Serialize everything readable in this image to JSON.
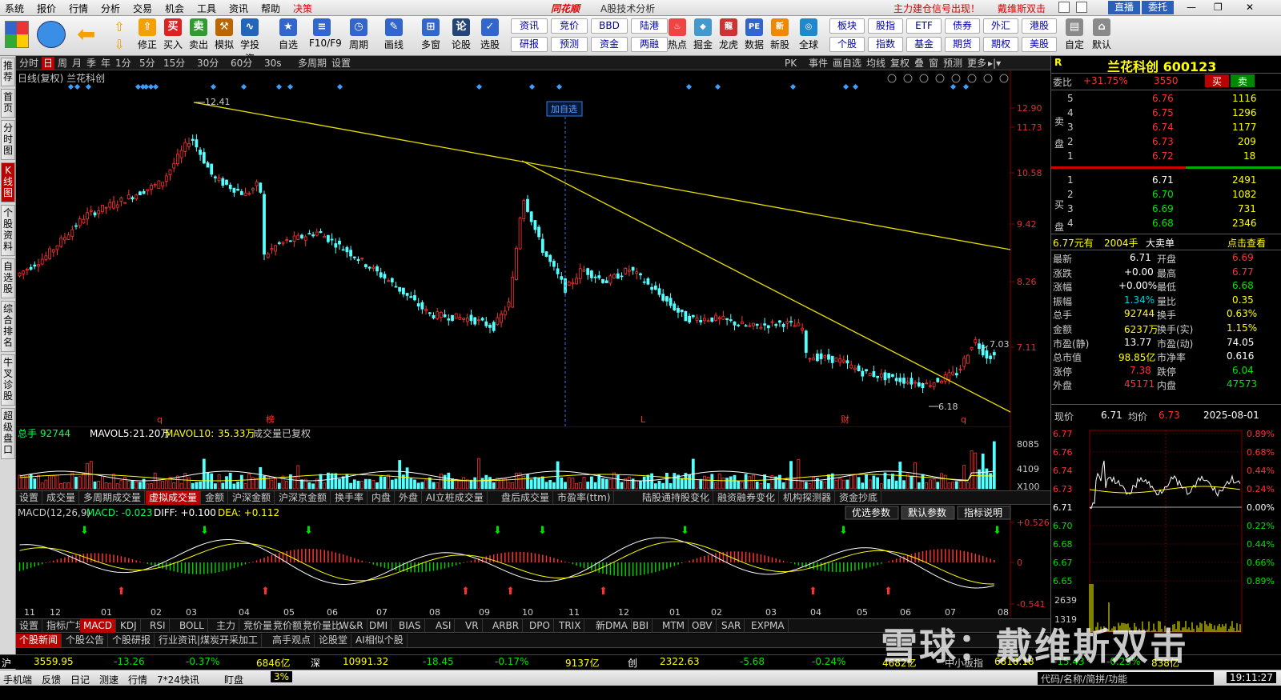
{
  "menu": {
    "items": [
      "系统",
      "报价",
      "行情",
      "分析",
      "交易",
      "机会",
      "工具",
      "资讯",
      "帮助",
      "决策"
    ],
    "brand": "同花顺",
    "subtitle": "A股技术分析",
    "signal": "主力建仓信号出现！",
    "user": "戴维斯双击",
    "live": "直播",
    "entrust": "委托"
  },
  "toolbar": {
    "main": [
      {
        "label": "修正",
        "icon": "⇧"
      },
      {
        "label": "买入",
        "icon": "买"
      },
      {
        "label": "卖出",
        "icon": "卖"
      },
      {
        "label": "模拟",
        "icon": "⚒"
      },
      {
        "label": "学投资",
        "icon": "∿"
      },
      {
        "label": "自选",
        "icon": "★"
      },
      {
        "label": "F10/F9",
        "icon": "≡"
      },
      {
        "label": "周期",
        "icon": "◷"
      },
      {
        "label": "画线",
        "icon": "✎"
      },
      {
        "label": "多窗",
        "icon": "⊞"
      },
      {
        "label": "论股",
        "icon": "论"
      },
      {
        "label": "选股",
        "icon": "✓"
      }
    ],
    "grid": [
      [
        "资讯",
        "竞价",
        "BBD",
        "陆港"
      ],
      [
        "研报",
        "预测",
        "资金",
        "两融"
      ]
    ],
    "mid": [
      {
        "label": "热点",
        "icon": "♨"
      },
      {
        "label": "掘金",
        "icon": "◆"
      },
      {
        "label": "龙虎",
        "icon": "龍"
      },
      {
        "label": "数据",
        "icon": "PE"
      },
      {
        "label": "新股",
        "icon": "新"
      },
      {
        "label": "全球",
        "icon": "◎"
      }
    ],
    "grid2": [
      [
        "板块",
        "股指",
        "ETF",
        "债券",
        "外汇",
        "港股"
      ],
      [
        "个股",
        "指数",
        "基金",
        "期货",
        "期权",
        "美股"
      ]
    ],
    "right": [
      {
        "label": "自定",
        "icon": "▤"
      },
      {
        "label": "默认",
        "icon": "⌂"
      }
    ]
  },
  "vtabs": [
    "推荐",
    "首页",
    "分时图",
    "K线图",
    "个股资料",
    "自选股",
    "综合排名",
    "牛叉诊股",
    "超级盘口"
  ],
  "period": {
    "items": [
      "分时",
      "日",
      "周",
      "月",
      "季",
      "年",
      "1分",
      "5分",
      "15分",
      "30分",
      "60分",
      "30s",
      "多周期",
      "设置"
    ],
    "active": "日",
    "right": [
      "PK",
      "事件",
      "画自选",
      "均线",
      "复权",
      "叠",
      "窗",
      "预测",
      "更多"
    ]
  },
  "chart": {
    "title": "日线(复权) 兰花科创",
    "price_axis": [
      "12.90",
      "11.73",
      "10.58",
      "9.42",
      "8.26",
      "7.11"
    ],
    "annotations": {
      "high": "12.41",
      "low": "6.18",
      "last": "7.03",
      "add_label": "加自选"
    },
    "event_marks": [
      "q",
      "榜",
      "L",
      "财",
      "q"
    ],
    "x_labels": [
      "11",
      "12",
      "01",
      "02",
      "03",
      "04",
      "05",
      "06",
      "07",
      "08",
      "09",
      "10",
      "11",
      "12",
      "01",
      "02",
      "03",
      "04",
      "05",
      "06",
      "07",
      "08"
    ],
    "volume_legend": {
      "name": "总手",
      "value": "92744",
      "ma5_label": "MAVOL5:",
      "ma5": "21.20万",
      "ma10_label": "MAVOL10:",
      "ma10": "35.33万",
      "note": "成交量已复权"
    },
    "volume_axis": [
      "8085",
      "4109",
      "X100"
    ],
    "macd_legend": {
      "name": "MACD(12,26,9)",
      "macd": "MACD: -0.023",
      "diff": "DIFF: +0.100",
      "dea": "DEA: +0.112"
    },
    "macd_axis": [
      "+0.526",
      "0",
      "-0.541"
    ],
    "macd_buttons": [
      "优选参数",
      "默认参数",
      "指标说明"
    ]
  },
  "vol_tabs": [
    "设置",
    "成交量",
    "多周期成交量",
    "虚拟成交量",
    "金额",
    "沪深金额",
    "沪深京金额",
    "换手率",
    "内盘",
    "外盘",
    "AI立桩成交量",
    "盘后成交量",
    "市盈率(ttm)",
    "陆股通持股变化",
    "融资融券变化",
    "机构探测器",
    "资金抄底"
  ],
  "ind_tabs": [
    "设置",
    "指标广场",
    "MACD",
    "KDJ",
    "RSI",
    "BOLL",
    "主力",
    "竞价量",
    "竞价额",
    "竞价量比",
    "W&R",
    "DMI",
    "BIAS",
    "ASI",
    "VR",
    "ARBR",
    "DPO",
    "TRIX",
    "新DMA",
    "BBI",
    "MTM",
    "OBV",
    "SAR",
    "EXPMA"
  ],
  "news_tabs": [
    "个股新闻",
    "个股公告",
    "个股研报",
    "行业资讯|煤炭开采加工",
    "高手观点",
    "论股堂",
    "AI相似个股"
  ],
  "quote": {
    "code_badge": "R",
    "name": "兰花科创 600123",
    "weibi_label": "委比",
    "weibi": "+31.75%",
    "weicha": "3550",
    "buy": "买",
    "sell": "卖",
    "asks": [
      {
        "lvl": "5",
        "price": "6.76",
        "vol": "1116"
      },
      {
        "lvl": "4",
        "price": "6.75",
        "vol": "1296"
      },
      {
        "lvl": "3",
        "price": "6.74",
        "vol": "1177"
      },
      {
        "lvl": "2",
        "price": "6.73",
        "vol": "209"
      },
      {
        "lvl": "1",
        "price": "6.72",
        "vol": "18"
      }
    ],
    "bids": [
      {
        "lvl": "1",
        "price": "6.71",
        "vol": "2491"
      },
      {
        "lvl": "2",
        "price": "6.70",
        "vol": "1082"
      },
      {
        "lvl": "3",
        "price": "6.69",
        "vol": "731"
      },
      {
        "lvl": "4",
        "price": "6.68",
        "vol": "2346"
      }
    ],
    "ask_side": "卖盘",
    "bid_side": "买盘",
    "bigorder": {
      "price": "6.77元有",
      "vol": "2004手",
      "label": "大卖单",
      "link": "点击查看"
    },
    "stats": [
      [
        "最新",
        "6.71",
        "开盘",
        "6.69"
      ],
      [
        "涨跌",
        "+0.00",
        "最高",
        "6.77"
      ],
      [
        "涨幅",
        "+0.00%",
        "最低",
        "6.68"
      ],
      [
        "振幅",
        "1.34%",
        "量比",
        "0.35"
      ],
      [
        "总手",
        "92744",
        "换手",
        "0.63%"
      ],
      [
        "金额",
        "6237万",
        "换手(实)",
        "1.15%"
      ],
      [
        "市盈(静)",
        "13.77",
        "市盈(动)",
        "74.05"
      ],
      [
        "总市值",
        "98.85亿",
        "市净率",
        "0.616"
      ],
      [
        "涨停",
        "7.38",
        "跌停",
        "6.04"
      ],
      [
        "外盘",
        "45171",
        "内盘",
        "47573"
      ]
    ],
    "intraday": {
      "now_label": "现价",
      "now": "6.71",
      "avg_label": "均价",
      "avg": "6.73",
      "date": "2025-08-01",
      "prices": [
        "6.77",
        "6.76",
        "6.74",
        "6.73",
        "6.71",
        "6.70",
        "6.68",
        "6.67",
        "6.65"
      ],
      "pcts": [
        "0.89%",
        "0.68%",
        "0.44%",
        "0.24%",
        "0.00%",
        "0.22%",
        "0.44%",
        "0.66%",
        "0.89%"
      ],
      "vols": [
        "2639",
        "1319"
      ]
    }
  },
  "indexbar": [
    {
      "name": "沪",
      "val": "3559.95",
      "chg": "-13.26",
      "pct": "-0.37%",
      "amt": "6846亿"
    },
    {
      "name": "深",
      "val": "10991.32",
      "chg": "-18.45",
      "pct": "-0.17%",
      "amt": "9137亿"
    },
    {
      "name": "创",
      "val": "2322.63",
      "chg": "-5.68",
      "pct": "-0.24%",
      "amt": "4682亿"
    },
    {
      "name": "中小板指",
      "val": "6818.18",
      "chg": "-15.43",
      "pct": "-0.23%",
      "amt": "838亿"
    }
  ],
  "status": {
    "items": [
      "手机端",
      "反馈",
      "日记",
      "测速",
      "行情",
      "7*24快讯",
      "盯盘"
    ],
    "tail": "3%",
    "search": "代码/名称/简拼/功能",
    "time": "19:11:27"
  },
  "watermark": "雪球：戴维斯双击",
  "colors": {
    "up": "#ff3232",
    "down": "#54ffff",
    "trend": "#e8e000",
    "ma5": "#ffffff",
    "ma10": "#e8e000"
  }
}
